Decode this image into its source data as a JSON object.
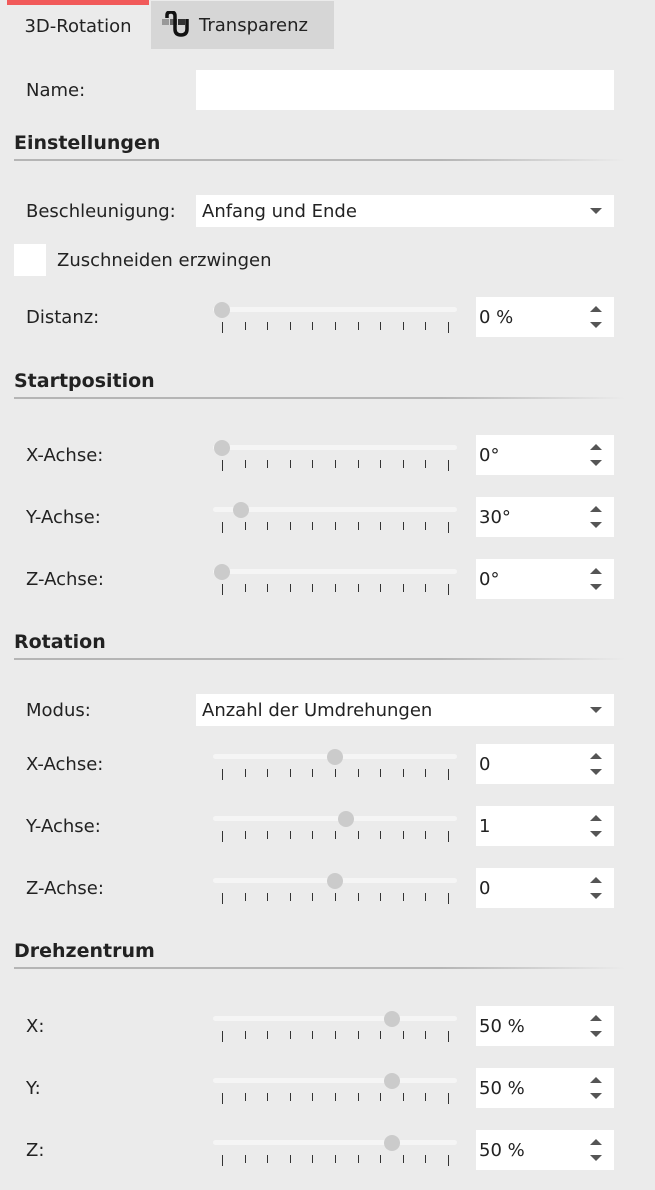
{
  "tabs": [
    {
      "label": "3D-Rotation",
      "active": true
    },
    {
      "label": "Transparenz",
      "icon": "transparency-icon"
    }
  ],
  "accent": "#f15a5a",
  "name": {
    "label": "Name:",
    "value": ""
  },
  "einstellungen": {
    "title": "Einstellungen",
    "beschleunigung_label": "Beschleunigung:",
    "beschleunigung_value": "Anfang und Ende",
    "zuschneiden_label": "Zuschneiden erzwingen",
    "zuschneiden_checked": false,
    "distanz_label": "Distanz:",
    "distanz_value": "0 %",
    "distanz_fraction": 0
  },
  "startposition": {
    "title": "Startposition",
    "rows": [
      {
        "label": "X-Achse:",
        "value": "0°",
        "fraction": 0
      },
      {
        "label": "Y-Achse:",
        "value": "30°",
        "fraction": 0.083
      },
      {
        "label": "Z-Achse:",
        "value": "0°",
        "fraction": 0
      }
    ]
  },
  "rotation": {
    "title": "Rotation",
    "modus_label": "Modus:",
    "modus_value": "Anzahl der Umdrehungen",
    "rows": [
      {
        "label": "X-Achse:",
        "value": "0",
        "fraction": 0.5
      },
      {
        "label": "Y-Achse:",
        "value": "1",
        "fraction": 0.55
      },
      {
        "label": "Z-Achse:",
        "value": "0",
        "fraction": 0.5
      }
    ]
  },
  "drehzentrum": {
    "title": "Drehzentrum",
    "rows": [
      {
        "label": "X:",
        "value": "50 %",
        "fraction": 0.75
      },
      {
        "label": "Y:",
        "value": "50 %",
        "fraction": 0.75
      },
      {
        "label": "Z:",
        "value": "50 %",
        "fraction": 0.75
      }
    ]
  }
}
